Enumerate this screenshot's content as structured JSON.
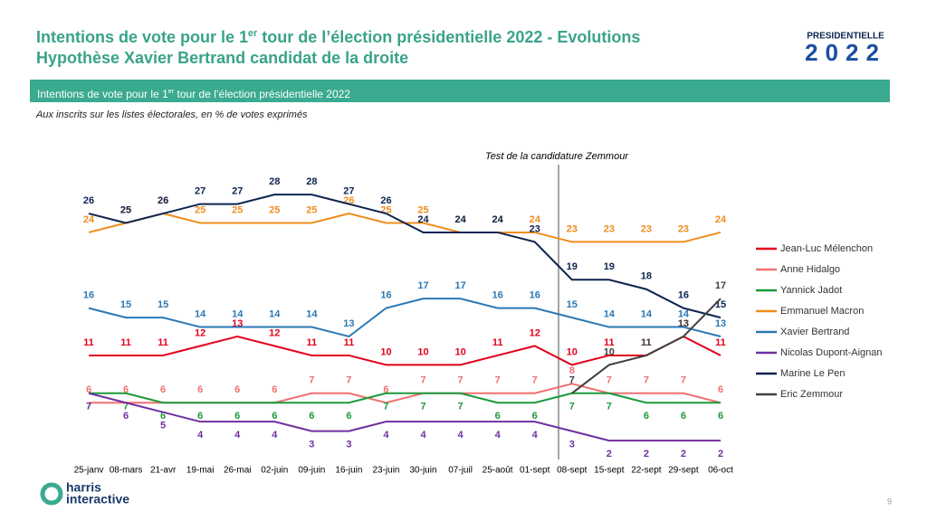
{
  "header": {
    "title_before": "Intentions de vote pour le 1",
    "title_sup": "er",
    "title_after": " tour de l’élection présidentielle 2022 - Evolutions",
    "subtitle": "Hypothèse Xavier Bertrand candidat de la droite",
    "banner_before": "Intentions de vote pour le 1",
    "banner_sup": "er",
    "banner_after": " tour de l’élection présidentielle 2022",
    "note": "Aux inscrits sur les listes électorales, en % de votes exprimés"
  },
  "logo": {
    "word": "PRESIDENTIELLE",
    "year": "2022"
  },
  "footer": {
    "brand_line1": "harris",
    "brand_line2": "interactive",
    "page": "9"
  },
  "chart_data": {
    "type": "line",
    "annotation": "Test de la candidature Zemmour",
    "categories": [
      "25-janv",
      "08-mars",
      "21-avr",
      "19-mai",
      "26-mai",
      "02-juin",
      "09-juin",
      "16-juin",
      "23-juin",
      "30-juin",
      "07-juil",
      "25-août",
      "01-sept",
      "08-sept",
      "15-sept",
      "22-sept",
      "29-sept",
      "06-oct"
    ],
    "series": [
      {
        "name": "Jean-Luc Mélenchon",
        "color": "#e3001b",
        "values": [
          11,
          11,
          11,
          12,
          13,
          12,
          11,
          11,
          10,
          10,
          10,
          11,
          12,
          10,
          11,
          11,
          13,
          11
        ]
      },
      {
        "name": "Anne Hidalgo",
        "color": "#f07070",
        "values": [
          6,
          6,
          6,
          6,
          6,
          6,
          7,
          7,
          6,
          7,
          7,
          7,
          7,
          8,
          7,
          7,
          7,
          6
        ]
      },
      {
        "name": "Yannick Jadot",
        "color": "#1a9a3c",
        "values": [
          7,
          7,
          6,
          6,
          6,
          6,
          6,
          6,
          7,
          7,
          7,
          6,
          6,
          7,
          7,
          6,
          6,
          6
        ]
      },
      {
        "name": "Emmanuel Macron",
        "color": "#f08c1e",
        "values": [
          24,
          25,
          26,
          25,
          25,
          25,
          25,
          26,
          25,
          25,
          24,
          24,
          24,
          23,
          23,
          23,
          23,
          24
        ]
      },
      {
        "name": "Xavier Bertrand",
        "color": "#2a79b5",
        "values": [
          16,
          15,
          15,
          14,
          14,
          14,
          14,
          13,
          16,
          17,
          17,
          16,
          16,
          15,
          14,
          14,
          14,
          13
        ]
      },
      {
        "name": "Nicolas Dupont-Aignan",
        "color": "#7030a0",
        "values": [
          7,
          6,
          5,
          4,
          4,
          4,
          3,
          3,
          4,
          4,
          4,
          4,
          4,
          3,
          2,
          2,
          2,
          2
        ]
      },
      {
        "name": "Marine Le Pen",
        "color": "#0d2450",
        "values": [
          26,
          25,
          26,
          27,
          27,
          28,
          28,
          27,
          26,
          24,
          24,
          24,
          23,
          19,
          19,
          18,
          16,
          15
        ]
      },
      {
        "name": "Eric Zemmour",
        "color": "#404040",
        "values": [
          null,
          null,
          null,
          null,
          null,
          null,
          null,
          null,
          null,
          null,
          null,
          null,
          null,
          7,
          10,
          11,
          13,
          17
        ]
      }
    ]
  }
}
